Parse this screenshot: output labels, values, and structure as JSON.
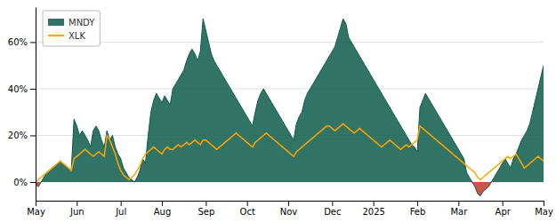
{
  "chart_data": {
    "type": "line",
    "categories": [
      "May",
      null,
      null,
      null,
      null,
      null,
      null,
      null,
      null,
      null,
      null,
      null,
      null,
      null,
      null,
      "Jun",
      null,
      null,
      null,
      null,
      null,
      null,
      null,
      null,
      null,
      null,
      null,
      null,
      null,
      null,
      null,
      "Jul",
      null,
      null,
      null,
      null,
      null,
      null,
      null,
      null,
      null,
      null,
      null,
      null,
      null,
      null,
      "Aug",
      null,
      null,
      null,
      null,
      null,
      null,
      null,
      null,
      null,
      null,
      null,
      null,
      null,
      null,
      null,
      "Sep",
      null,
      null,
      null,
      null,
      null,
      null,
      null,
      null,
      null,
      null,
      null,
      null,
      null,
      null,
      "Oct",
      null,
      null,
      null,
      null,
      null,
      null,
      null,
      null,
      null,
      null,
      null,
      null,
      null,
      null,
      "Nov",
      null,
      null,
      null,
      null,
      null,
      null,
      null,
      null,
      null,
      null,
      null,
      null,
      null,
      null,
      null,
      "Dec",
      null,
      null,
      null,
      null,
      null,
      null,
      null,
      null,
      null,
      null,
      null,
      null,
      null,
      null,
      "2025",
      null,
      null,
      null,
      null,
      null,
      null,
      null,
      null,
      null,
      null,
      null,
      null,
      null,
      null,
      null,
      "Feb",
      null,
      null,
      null,
      null,
      null,
      null,
      null,
      null,
      null,
      null,
      null,
      null,
      null,
      null,
      "Mar",
      null,
      null,
      null,
      null,
      null,
      null,
      null,
      null,
      null,
      null,
      null,
      null,
      null,
      null,
      null,
      "Apr",
      null,
      null,
      null,
      null,
      null,
      null,
      null,
      null,
      null,
      null,
      null,
      null,
      null,
      null,
      "May"
    ],
    "series": [
      {
        "name": "MNDY",
        "type": "area",
        "color": "#0d5c4a",
        "values": [
          -1,
          -2,
          0,
          2,
          4,
          5,
          6,
          7,
          8,
          9,
          8,
          7,
          6,
          5,
          27,
          24,
          20,
          22,
          20,
          18,
          15,
          22,
          24,
          22,
          18,
          15,
          22,
          18,
          20,
          15,
          12,
          10,
          6,
          4,
          2,
          1,
          0,
          2,
          5,
          10,
          8,
          20,
          30,
          35,
          38,
          36,
          34,
          37,
          35,
          33,
          40,
          42,
          44,
          46,
          48,
          52,
          55,
          57,
          55,
          52,
          56,
          70,
          65,
          60,
          55,
          52,
          50,
          48,
          46,
          44,
          42,
          40,
          38,
          36,
          34,
          32,
          30,
          28,
          26,
          24,
          30,
          35,
          38,
          40,
          38,
          36,
          34,
          32,
          30,
          28,
          26,
          24,
          22,
          20,
          18,
          25,
          28,
          30,
          35,
          38,
          40,
          42,
          44,
          46,
          48,
          50,
          52,
          54,
          56,
          58,
          62,
          66,
          70,
          68,
          62,
          60,
          58,
          56,
          54,
          52,
          50,
          48,
          46,
          44,
          42,
          40,
          38,
          36,
          34,
          32,
          30,
          28,
          26,
          24,
          22,
          20,
          18,
          16,
          15,
          13,
          32,
          35,
          38,
          36,
          34,
          32,
          30,
          28,
          26,
          24,
          22,
          20,
          18,
          16,
          14,
          12,
          10,
          4,
          2,
          0,
          -2,
          -5,
          -6,
          -4,
          -3,
          -2,
          0,
          2,
          4,
          6,
          8,
          10,
          8,
          6,
          10,
          12,
          15,
          18,
          20,
          22,
          25,
          30,
          35,
          40,
          45,
          50
        ]
      },
      {
        "name": "XLK",
        "type": "line",
        "color": "#FFA500",
        "values": [
          0,
          1,
          2,
          3,
          4,
          5,
          6,
          7,
          8,
          9,
          8,
          7,
          6,
          5,
          10,
          11,
          12,
          13,
          14,
          13,
          12,
          11,
          12,
          13,
          12,
          11,
          20,
          18,
          15,
          12,
          8,
          5,
          3,
          2,
          1,
          2,
          3,
          5,
          7,
          10,
          12,
          13,
          14,
          15,
          14,
          13,
          12,
          14,
          15,
          14,
          14,
          15,
          16,
          15,
          16,
          17,
          16,
          17,
          18,
          17,
          16,
          18,
          18,
          17,
          16,
          15,
          14,
          15,
          16,
          17,
          18,
          19,
          20,
          21,
          20,
          19,
          18,
          17,
          16,
          15,
          17,
          18,
          19,
          20,
          21,
          20,
          19,
          18,
          17,
          16,
          15,
          14,
          13,
          12,
          11,
          13,
          14,
          15,
          16,
          17,
          18,
          19,
          20,
          21,
          22,
          23,
          24,
          24,
          23,
          22,
          23,
          24,
          25,
          24,
          23,
          22,
          21,
          22,
          23,
          22,
          21,
          20,
          19,
          18,
          17,
          16,
          15,
          16,
          17,
          18,
          17,
          16,
          15,
          14,
          15,
          16,
          15,
          16,
          17,
          18,
          24,
          23,
          22,
          21,
          20,
          19,
          18,
          17,
          16,
          15,
          14,
          13,
          12,
          11,
          10,
          9,
          8,
          7,
          6,
          5,
          4,
          2,
          1,
          2,
          3,
          4,
          5,
          6,
          7,
          8,
          9,
          10,
          11,
          10,
          11,
          12,
          10,
          8,
          6,
          7,
          8,
          9,
          10,
          11,
          10,
          9
        ]
      }
    ],
    "ylim": [
      -8,
      75
    ],
    "yticks": [
      {
        "value": 0,
        "label": "0%"
      },
      {
        "value": 20,
        "label": "20%"
      },
      {
        "value": 40,
        "label": "40%"
      },
      {
        "value": 60,
        "label": "60%"
      }
    ],
    "grid": true,
    "legend": "upper left"
  }
}
